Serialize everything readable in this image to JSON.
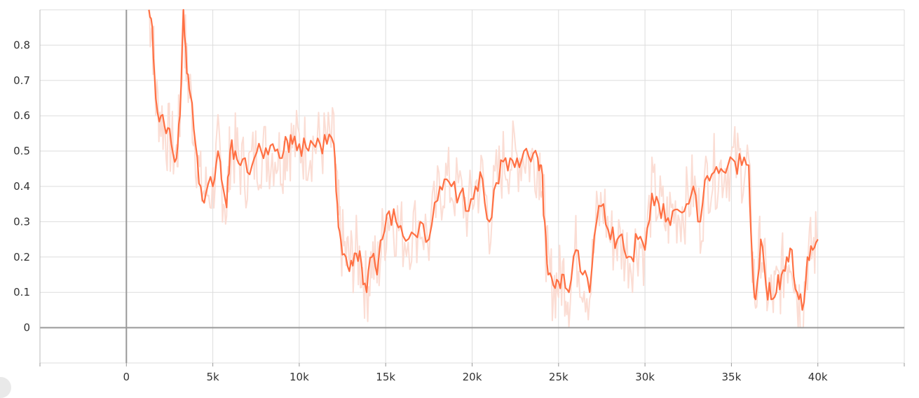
{
  "chart_data": {
    "type": "line",
    "title": "",
    "xlabel": "",
    "ylabel": "",
    "xlim": [
      -5000,
      45000
    ],
    "ylim": [
      -0.1,
      0.9
    ],
    "x_ticks": [
      0,
      5000,
      10000,
      15000,
      20000,
      25000,
      30000,
      35000,
      40000
    ],
    "x_tick_labels": [
      "0",
      "5k",
      "10k",
      "15k",
      "20k",
      "25k",
      "30k",
      "35k",
      "40k"
    ],
    "y_ticks": [
      0,
      0.1,
      0.2,
      0.3,
      0.4,
      0.5,
      0.6,
      0.7,
      0.8
    ],
    "y_tick_labels": [
      "0",
      "0.1",
      "0.2",
      "0.3",
      "0.4",
      "0.5",
      "0.6",
      "0.7",
      "0.8"
    ],
    "grid": true,
    "colors": {
      "smoothed": "#ff7043",
      "raw": "#fbd9cf",
      "grid": "#dddddd",
      "zero_axis": "#999999"
    },
    "series": [
      {
        "role": "smoothed",
        "x": [
          1300,
          1500,
          1700,
          2000,
          2300,
          2600,
          2900,
          3100,
          3300,
          3500,
          3700,
          4000,
          4300,
          4600,
          5000,
          5300,
          5500,
          5800,
          6000,
          6300,
          6600,
          7000,
          7400,
          7800,
          8200,
          8600,
          9000,
          9300,
          9600,
          10000,
          10400,
          10800,
          11200,
          11600,
          12000,
          12200,
          12400,
          12700,
          13000,
          13300,
          13600,
          13900,
          14200,
          14500,
          14800,
          15200,
          15600,
          16000,
          16500,
          17000,
          17500,
          18000,
          18400,
          18800,
          19300,
          19800,
          20200,
          20600,
          21000,
          21400,
          21800,
          22200,
          22600,
          23000,
          23400,
          23800,
          24000,
          24200,
          24400,
          24700,
          25000,
          25300,
          25600,
          26000,
          26400,
          26800,
          27200,
          27600,
          28000,
          28400,
          28800,
          29200,
          29600,
          30000,
          30400,
          30800,
          31200,
          31600,
          32000,
          32400,
          32800,
          33200,
          33600,
          34000,
          34400,
          34800,
          35200,
          35600,
          36000,
          36200,
          36400,
          36700,
          37000,
          37300,
          37600,
          37900,
          38200,
          38500,
          38800,
          39100,
          39400,
          39700,
          40000
        ],
        "y": [
          0.9,
          0.85,
          0.65,
          0.6,
          0.55,
          0.52,
          0.48,
          0.6,
          0.9,
          0.72,
          0.66,
          0.52,
          0.4,
          0.38,
          0.4,
          0.5,
          0.42,
          0.34,
          0.5,
          0.5,
          0.46,
          0.44,
          0.48,
          0.5,
          0.49,
          0.5,
          0.48,
          0.53,
          0.52,
          0.52,
          0.51,
          0.52,
          0.52,
          0.52,
          0.52,
          0.35,
          0.25,
          0.2,
          0.19,
          0.21,
          0.18,
          0.1,
          0.2,
          0.15,
          0.25,
          0.33,
          0.3,
          0.26,
          0.27,
          0.3,
          0.25,
          0.36,
          0.42,
          0.4,
          0.38,
          0.33,
          0.4,
          0.42,
          0.3,
          0.41,
          0.47,
          0.48,
          0.48,
          0.5,
          0.47,
          0.48,
          0.46,
          0.3,
          0.15,
          0.12,
          0.13,
          0.15,
          0.1,
          0.22,
          0.15,
          0.1,
          0.3,
          0.35,
          0.25,
          0.25,
          0.22,
          0.2,
          0.25,
          0.22,
          0.38,
          0.35,
          0.3,
          0.33,
          0.33,
          0.35,
          0.4,
          0.3,
          0.43,
          0.44,
          0.45,
          0.46,
          0.47,
          0.46,
          0.46,
          0.2,
          0.08,
          0.25,
          0.12,
          0.08,
          0.1,
          0.15,
          0.2,
          0.22,
          0.1,
          0.05,
          0.2,
          0.22,
          0.25
        ]
      }
    ]
  }
}
